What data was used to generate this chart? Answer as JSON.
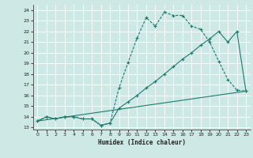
{
  "xlabel": "Humidex (Indice chaleur)",
  "xlim": [
    -0.5,
    23.5
  ],
  "ylim": [
    12.8,
    24.5
  ],
  "yticks": [
    13,
    14,
    15,
    16,
    17,
    18,
    19,
    20,
    21,
    22,
    23,
    24
  ],
  "xticks": [
    0,
    1,
    2,
    3,
    4,
    5,
    6,
    7,
    8,
    9,
    10,
    11,
    12,
    13,
    14,
    15,
    16,
    17,
    18,
    19,
    20,
    21,
    22,
    23
  ],
  "bg_color": "#cde8e5",
  "grid_color": "#b5d8d5",
  "line_color": "#1e7a6e",
  "line1_x": [
    0,
    1,
    2,
    3,
    4,
    5,
    6,
    7,
    8,
    9,
    10,
    11,
    12,
    13,
    14,
    15,
    16,
    17,
    18,
    19,
    20,
    21,
    22,
    23
  ],
  "line1_y": [
    13.6,
    14.0,
    13.8,
    14.0,
    14.0,
    13.8,
    13.8,
    13.2,
    13.4,
    16.7,
    19.1,
    21.4,
    23.3,
    22.5,
    23.8,
    23.5,
    23.5,
    22.5,
    22.2,
    21.0,
    19.2,
    17.5,
    16.5,
    16.4
  ],
  "line2_x": [
    0,
    1,
    2,
    3,
    4,
    5,
    6,
    7,
    8,
    9,
    10,
    11,
    12,
    13,
    14,
    15,
    16,
    17,
    18,
    19,
    20,
    21,
    22,
    23
  ],
  "line2_y": [
    13.6,
    14.0,
    13.8,
    14.0,
    14.0,
    13.8,
    13.8,
    13.2,
    13.4,
    14.8,
    15.4,
    16.0,
    16.7,
    17.3,
    18.0,
    18.7,
    19.4,
    20.0,
    20.7,
    21.3,
    22.0,
    21.0,
    22.0,
    16.4
  ],
  "line3_x": [
    0,
    23
  ],
  "line3_y": [
    13.6,
    16.4
  ]
}
